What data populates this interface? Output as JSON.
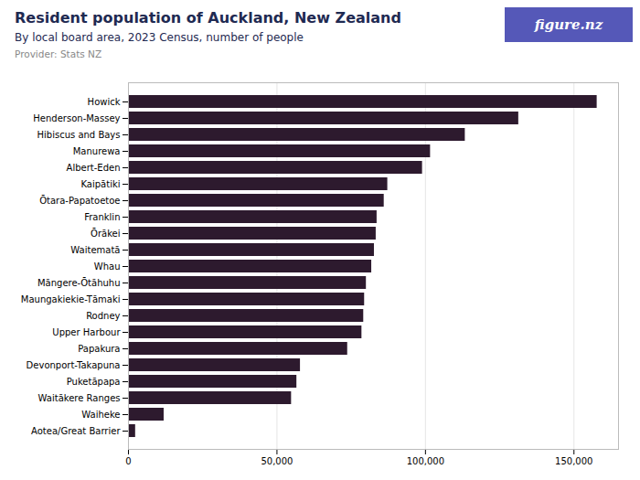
{
  "chart_data": {
    "type": "bar",
    "orientation": "horizontal",
    "title": "Resident population of Auckland, New Zealand",
    "subtitle": "By local board area, 2023 Census, number of people",
    "caption": "Provider: Stats NZ",
    "annotations": [
      "figure.nz"
    ],
    "categories": [
      "Howick",
      "Henderson-Massey",
      "Hibiscus and Bays",
      "Manurewa",
      "Albert-Eden",
      "Kaipātiki",
      "Ōtara-Papatoetoe",
      "Franklin",
      "Ōrākei",
      "Waitematā",
      "Whau",
      "Māngere-Ōtāhuhu",
      "Maungakiekie-Tāmaki",
      "Rodney",
      "Upper Harbour",
      "Papakura",
      "Devonport-Takapuna",
      "Puketāpapa",
      "Waitākere Ranges",
      "Waiheke",
      "Aotea/Great Barrier"
    ],
    "values": [
      157800,
      131400,
      113400,
      101700,
      99000,
      87300,
      86100,
      83700,
      83400,
      82800,
      81900,
      80100,
      79500,
      79200,
      78600,
      73800,
      57900,
      56700,
      54900,
      12000,
      2400
    ],
    "color": "#2d1a2e",
    "xlim": [
      0,
      165000
    ],
    "xticks": [
      0,
      {
        "value": 50000,
        "label": "50,000"
      },
      {
        "value": 100000,
        "label": "100,000"
      },
      {
        "value": 150000,
        "label": "150,000"
      }
    ],
    "grid": true
  }
}
